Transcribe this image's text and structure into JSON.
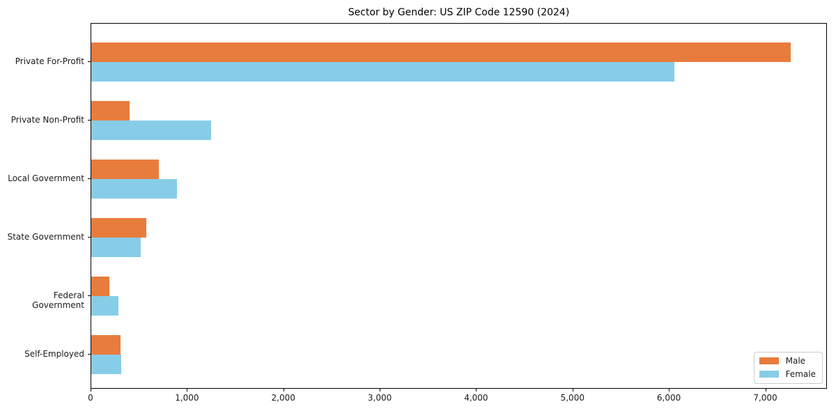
{
  "chart_data": {
    "type": "bar",
    "orientation": "horizontal",
    "title": "Sector by Gender: US ZIP Code 12590 (2024)",
    "xlabel": "",
    "ylabel": "",
    "categories": [
      "Private For-Profit",
      "Private Non-Profit",
      "Local Government",
      "State Government",
      "Federal Government",
      "Self-Employed"
    ],
    "series": [
      {
        "name": "Male",
        "color": "#e87c3c",
        "values": [
          7260,
          400,
          700,
          570,
          190,
          300
        ]
      },
      {
        "name": "Female",
        "color": "#87cde8",
        "values": [
          6050,
          1240,
          890,
          510,
          280,
          310
        ]
      }
    ],
    "xlim": [
      0,
      7640
    ],
    "xticks": [
      0,
      1000,
      2000,
      3000,
      4000,
      5000,
      6000,
      7000
    ],
    "xtick_labels": [
      "0",
      "1,000",
      "2,000",
      "3,000",
      "4,000",
      "5,000",
      "6,000",
      "7,000"
    ],
    "grid": false,
    "legend": {
      "position": "lower right",
      "entries": [
        "Male",
        "Female"
      ]
    }
  },
  "colors": {
    "male": "#e87c3c",
    "female": "#87cde8",
    "axis": "#000000",
    "text": "#1a1a1a",
    "legend_border": "#cccccc",
    "background": "#ffffff"
  }
}
